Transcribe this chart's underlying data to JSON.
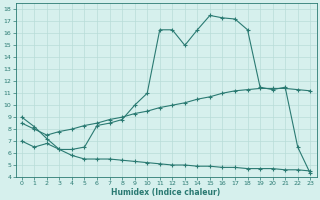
{
  "xlabel": "Humidex (Indice chaleur)",
  "bg_color": "#d6f0ed",
  "line_color": "#2a7a72",
  "grid_color": "#b8ddd8",
  "xlim": [
    -0.5,
    23.5
  ],
  "ylim": [
    4,
    18.5
  ],
  "xticks": [
    0,
    1,
    2,
    3,
    4,
    5,
    6,
    7,
    8,
    9,
    10,
    11,
    12,
    13,
    14,
    15,
    16,
    17,
    18,
    19,
    20,
    21,
    22,
    23
  ],
  "yticks": [
    4,
    5,
    6,
    7,
    8,
    9,
    10,
    11,
    12,
    13,
    14,
    15,
    16,
    17,
    18
  ],
  "line1_x": [
    0,
    1,
    2,
    3,
    4,
    5,
    6,
    7,
    8,
    9,
    10,
    11,
    12,
    13,
    14,
    15,
    16,
    17,
    18,
    19,
    20,
    21,
    22,
    23
  ],
  "line1_y": [
    9.0,
    8.2,
    7.2,
    6.3,
    6.3,
    6.5,
    8.3,
    8.5,
    8.8,
    10.0,
    11.0,
    16.3,
    16.3,
    15.0,
    16.3,
    17.5,
    17.3,
    17.2,
    16.3,
    11.5,
    11.3,
    11.5,
    6.5,
    4.3
  ],
  "line2_x": [
    0,
    1,
    2,
    3,
    4,
    5,
    6,
    7,
    8,
    9,
    10,
    11,
    12,
    13,
    14,
    15,
    16,
    17,
    18,
    19,
    20,
    21,
    22,
    23
  ],
  "line2_y": [
    8.5,
    8.0,
    7.5,
    7.8,
    8.0,
    8.3,
    8.5,
    8.8,
    9.0,
    9.3,
    9.5,
    9.8,
    10.0,
    10.2,
    10.5,
    10.7,
    11.0,
    11.2,
    11.3,
    11.4,
    11.4,
    11.4,
    11.3,
    11.2
  ],
  "line3_x": [
    0,
    1,
    2,
    3,
    4,
    5,
    6,
    7,
    8,
    9,
    10,
    11,
    12,
    13,
    14,
    15,
    16,
    17,
    18,
    19,
    20,
    21,
    22,
    23
  ],
  "line3_y": [
    7.0,
    6.5,
    6.8,
    6.3,
    5.8,
    5.5,
    5.5,
    5.5,
    5.4,
    5.3,
    5.2,
    5.1,
    5.0,
    5.0,
    4.9,
    4.9,
    4.8,
    4.8,
    4.7,
    4.7,
    4.7,
    4.6,
    4.6,
    4.5
  ]
}
